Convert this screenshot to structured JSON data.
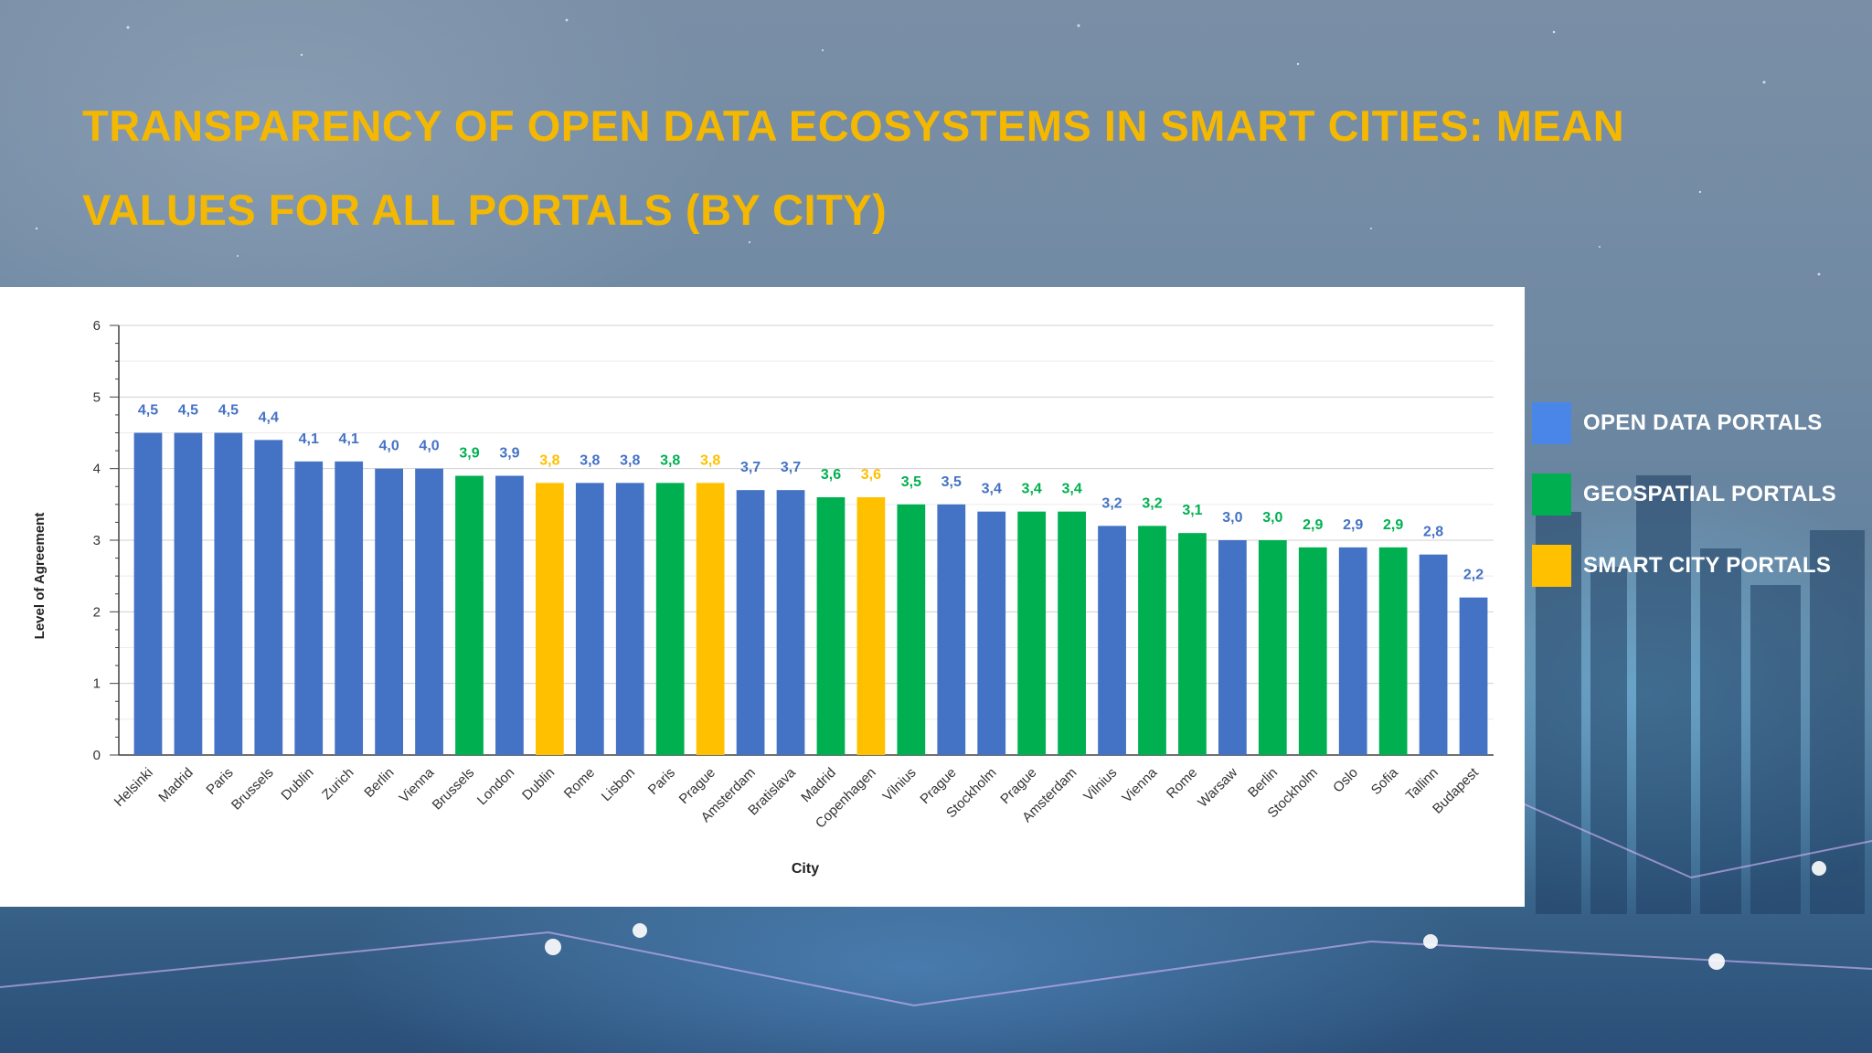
{
  "slide": {
    "title": "TRANSPARENCY OF OPEN DATA ECOSYSTEMS IN SMART CITIES: MEAN VALUES FOR ALL PORTALS (BY CITY)"
  },
  "legend": {
    "items": [
      {
        "label": "OPEN DATA PORTALS",
        "color": "#4a86e8"
      },
      {
        "label": "GEOSPATIAL PORTALS",
        "color": "#00b050"
      },
      {
        "label": "SMART CITY PORTALS",
        "color": "#ffc000"
      }
    ]
  },
  "chart_data": {
    "type": "bar",
    "xlabel": "City",
    "ylabel": "Level of Agreement",
    "ylim": [
      0,
      6
    ],
    "yticks": [
      0,
      1,
      2,
      3,
      4,
      5,
      6
    ],
    "grid": true,
    "legend_position": "right",
    "colors": {
      "open_data": "#4472c4",
      "geospatial": "#00b050",
      "smart_city": "#ffc000"
    },
    "categories": [
      "Helsinki",
      "Madrid",
      "Paris",
      "Brussels",
      "Dublin",
      "Zurich",
      "Berlin",
      "Vienna",
      "Brussels",
      "London",
      "Dublin",
      "Rome",
      "Lisbon",
      "Paris",
      "Prague",
      "Amsterdam",
      "Bratislava",
      "Madrid",
      "Copenhagen",
      "Vilnius",
      "Prague",
      "Stockholm",
      "Prague",
      "Amsterdam",
      "Vilnius",
      "Vienna",
      "Rome",
      "Warsaw",
      "Berlin",
      "Stockholm",
      "Oslo",
      "Sofia",
      "Tallinn",
      "Budapest"
    ],
    "values": [
      4.5,
      4.5,
      4.5,
      4.4,
      4.1,
      4.1,
      4.0,
      4.0,
      3.9,
      3.9,
      3.8,
      3.8,
      3.8,
      3.8,
      3.8,
      3.7,
      3.7,
      3.6,
      3.6,
      3.5,
      3.5,
      3.4,
      3.4,
      3.4,
      3.2,
      3.2,
      3.1,
      3.0,
      3.0,
      2.9,
      2.9,
      2.9,
      2.8,
      2.2
    ],
    "data_labels": [
      "4,5",
      "4,5",
      "4,5",
      "4,4",
      "4,1",
      "4,1",
      "4,0",
      "4,0",
      "3,9",
      "3,9",
      "3,8",
      "3,8",
      "3,8",
      "3,8",
      "3,8",
      "3,7",
      "3,7",
      "3,6",
      "3,6",
      "3,5",
      "3,5",
      "3,4",
      "3,4",
      "3,4",
      "3,2",
      "3,2",
      "3,1",
      "3,0",
      "3,0",
      "2,9",
      "2,9",
      "2,9",
      "2,8",
      "2,2"
    ],
    "portal_types": [
      "open_data",
      "open_data",
      "open_data",
      "open_data",
      "open_data",
      "open_data",
      "open_data",
      "open_data",
      "geospatial",
      "open_data",
      "smart_city",
      "open_data",
      "open_data",
      "geospatial",
      "smart_city",
      "open_data",
      "open_data",
      "geospatial",
      "smart_city",
      "geospatial",
      "open_data",
      "open_data",
      "geospatial",
      "geospatial",
      "open_data",
      "geospatial",
      "geospatial",
      "open_data",
      "geospatial",
      "geospatial",
      "open_data",
      "geospatial",
      "open_data",
      "open_data"
    ]
  }
}
